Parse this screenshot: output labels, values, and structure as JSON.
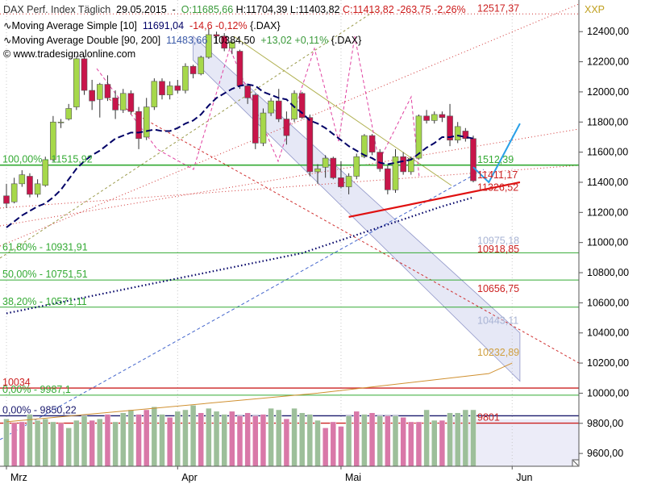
{
  "header": {
    "line1": {
      "name": "DAX Perf. Index Täglich",
      "date": "29.05.2015",
      "open": "O:11685,66",
      "high": "H:11704,39",
      "low": "L:11403,82",
      "close": "C:11413,82",
      "change": "-263,75",
      "change_pct": "-2,26%"
    },
    "line2": {
      "name": "Moving Average Simple [10]",
      "value": "11691,04",
      "change": "-14,6",
      "change_pct": "-0,12%",
      "symbol": "{.DAX}"
    },
    "line3": {
      "name": "Moving Average Double [90, 200]",
      "value1": "11483,66",
      "value2": "10384,50",
      "change": "+13,02",
      "change_pct": "+0,11%",
      "symbol": "{.DAX}"
    },
    "line4": {
      "copyright": "© www.tradesignalonline.com"
    }
  },
  "colors": {
    "up": "#a6d84a",
    "down": "#c8154a",
    "vol_up": "#9dbf9a",
    "vol_down": "#d978a8",
    "ma_simple": "#000066",
    "fib": "#33aa33",
    "resistance": "#cc2222",
    "trend_up": "#e01010",
    "forecast": "#2aa0e8",
    "channel_fill": "#e6e8f6"
  },
  "chart_data": {
    "type": "candlestick",
    "symbol": "XXP",
    "y_ticks": [
      "12400,00",
      "12200,00",
      "12000,00",
      "11800,00",
      "11600,00",
      "11400,00",
      "11200,00",
      "11000,00",
      "10800,00",
      "10600,00",
      "10400,00",
      "10200,00",
      "10000,00",
      "9800,00",
      "9600,00"
    ],
    "y_tick_values": [
      12400,
      12200,
      12000,
      11800,
      11600,
      11400,
      11200,
      11000,
      10800,
      10600,
      10400,
      10200,
      10000,
      9800,
      9600
    ],
    "ylim": [
      9515,
      12610
    ],
    "x_labels": [
      {
        "label": "Mrz",
        "index": 0
      },
      {
        "label": "Apr",
        "index": 22
      },
      {
        "label": "Mai",
        "index": 43
      },
      {
        "label": "Jun",
        "index": 65
      }
    ],
    "candles": [
      {
        "o": 11310,
        "h": 11390,
        "l": 11230,
        "c": 11260
      },
      {
        "o": 11270,
        "h": 11430,
        "l": 11260,
        "c": 11390
      },
      {
        "o": 11390,
        "h": 11480,
        "l": 11370,
        "c": 11450
      },
      {
        "o": 11440,
        "h": 11460,
        "l": 11300,
        "c": 11320
      },
      {
        "o": 11320,
        "h": 11420,
        "l": 11300,
        "c": 11390
      },
      {
        "o": 11380,
        "h": 11570,
        "l": 11370,
        "c": 11550
      },
      {
        "o": 11550,
        "h": 11840,
        "l": 11540,
        "c": 11800
      },
      {
        "o": 11800,
        "h": 11820,
        "l": 11760,
        "c": 11800
      },
      {
        "o": 11820,
        "h": 11920,
        "l": 11810,
        "c": 11890
      },
      {
        "o": 11900,
        "h": 12240,
        "l": 11880,
        "c": 12220
      },
      {
        "o": 12220,
        "h": 12240,
        "l": 11980,
        "c": 12010
      },
      {
        "o": 12010,
        "h": 12080,
        "l": 11880,
        "c": 11940
      },
      {
        "o": 11950,
        "h": 12060,
        "l": 11830,
        "c": 12050
      },
      {
        "o": 12050,
        "h": 12110,
        "l": 11940,
        "c": 11960
      },
      {
        "o": 11960,
        "h": 12010,
        "l": 11820,
        "c": 11880
      },
      {
        "o": 11880,
        "h": 12020,
        "l": 11860,
        "c": 11990
      },
      {
        "o": 11990,
        "h": 12010,
        "l": 11850,
        "c": 11870
      },
      {
        "o": 11870,
        "h": 11900,
        "l": 11620,
        "c": 11690
      },
      {
        "o": 11700,
        "h": 11960,
        "l": 11680,
        "c": 11900
      },
      {
        "o": 11900,
        "h": 12090,
        "l": 11880,
        "c": 12070
      },
      {
        "o": 12070,
        "h": 12090,
        "l": 11950,
        "c": 11980
      },
      {
        "o": 11980,
        "h": 12070,
        "l": 11950,
        "c": 12040
      },
      {
        "o": 12040,
        "h": 12080,
        "l": 11990,
        "c": 12010
      },
      {
        "o": 12010,
        "h": 12190,
        "l": 11990,
        "c": 12170
      },
      {
        "o": 12170,
        "h": 12180,
        "l": 12090,
        "c": 12120
      },
      {
        "o": 12120,
        "h": 12240,
        "l": 12110,
        "c": 12230
      },
      {
        "o": 12230,
        "h": 12420,
        "l": 12220,
        "c": 12380
      },
      {
        "o": 12380,
        "h": 12400,
        "l": 12320,
        "c": 12370
      },
      {
        "o": 12370,
        "h": 12390,
        "l": 12270,
        "c": 12290
      },
      {
        "o": 12290,
        "h": 12340,
        "l": 12250,
        "c": 12330
      },
      {
        "o": 12270,
        "h": 12280,
        "l": 12020,
        "c": 12040
      },
      {
        "o": 12040,
        "h": 12050,
        "l": 11920,
        "c": 11960
      },
      {
        "o": 11980,
        "h": 11990,
        "l": 11620,
        "c": 11660
      },
      {
        "o": 11660,
        "h": 11890,
        "l": 11640,
        "c": 11860
      },
      {
        "o": 11860,
        "h": 11960,
        "l": 11840,
        "c": 11940
      },
      {
        "o": 11940,
        "h": 12020,
        "l": 11800,
        "c": 11820
      },
      {
        "o": 11820,
        "h": 11870,
        "l": 11650,
        "c": 11710
      },
      {
        "o": 11820,
        "h": 12010,
        "l": 11800,
        "c": 11990
      },
      {
        "o": 11990,
        "h": 12000,
        "l": 11820,
        "c": 11830
      },
      {
        "o": 11830,
        "h": 11850,
        "l": 11440,
        "c": 11470
      },
      {
        "o": 11470,
        "h": 11520,
        "l": 11390,
        "c": 11490
      },
      {
        "o": 11500,
        "h": 11580,
        "l": 11430,
        "c": 11560
      },
      {
        "o": 11560,
        "h": 11570,
        "l": 11420,
        "c": 11430
      },
      {
        "o": 11430,
        "h": 11540,
        "l": 11360,
        "c": 11370
      },
      {
        "o": 11370,
        "h": 11460,
        "l": 11320,
        "c": 11440
      },
      {
        "o": 11440,
        "h": 11590,
        "l": 11420,
        "c": 11570
      },
      {
        "o": 11570,
        "h": 11720,
        "l": 11560,
        "c": 11710
      },
      {
        "o": 11710,
        "h": 11720,
        "l": 11580,
        "c": 11600
      },
      {
        "o": 11600,
        "h": 11620,
        "l": 11470,
        "c": 11490
      },
      {
        "o": 11490,
        "h": 11510,
        "l": 11320,
        "c": 11350
      },
      {
        "o": 11350,
        "h": 11620,
        "l": 11330,
        "c": 11570
      },
      {
        "o": 11570,
        "h": 11600,
        "l": 11450,
        "c": 11470
      },
      {
        "o": 11470,
        "h": 11570,
        "l": 11450,
        "c": 11560
      },
      {
        "o": 11560,
        "h": 11850,
        "l": 11550,
        "c": 11840
      },
      {
        "o": 11840,
        "h": 11880,
        "l": 11790,
        "c": 11810
      },
      {
        "o": 11810,
        "h": 11870,
        "l": 11790,
        "c": 11850
      },
      {
        "o": 11850,
        "h": 11870,
        "l": 11800,
        "c": 11830
      },
      {
        "o": 11840,
        "h": 11920,
        "l": 11640,
        "c": 11680
      },
      {
        "o": 11680,
        "h": 11800,
        "l": 11660,
        "c": 11770
      },
      {
        "o": 11740,
        "h": 11760,
        "l": 11670,
        "c": 11690
      },
      {
        "o": 11690,
        "h": 11710,
        "l": 11400,
        "c": 11410
      }
    ],
    "ma_simple_10": [
      11100,
      11140,
      11180,
      11210,
      11240,
      11260,
      11300,
      11350,
      11420,
      11490,
      11540,
      11580,
      11610,
      11650,
      11690,
      11710,
      11730,
      11730,
      11740,
      11750,
      11740,
      11740,
      11760,
      11790,
      11810,
      11850,
      11910,
      11960,
      11990,
      12020,
      12040,
      12050,
      12040,
      12000,
      11980,
      11960,
      11950,
      11900,
      11860,
      11810,
      11790,
      11760,
      11720,
      11680,
      11640,
      11610,
      11580,
      11560,
      11530,
      11520,
      11530,
      11540,
      11550,
      11590,
      11630,
      11660,
      11700,
      11700,
      11710,
      11700,
      11691
    ],
    "volume": [
      9830,
      9800,
      9810,
      9860,
      9820,
      9830,
      9810,
      9800,
      9770,
      9820,
      9850,
      9820,
      9830,
      9860,
      9810,
      9870,
      9890,
      9860,
      9890,
      9910,
      9860,
      9840,
      9880,
      9890,
      9920,
      9870,
      9900,
      9880,
      9860,
      9880,
      9850,
      9870,
      9850,
      9860,
      9900,
      9890,
      9830,
      9900,
      9870,
      9860,
      9820,
      9770,
      9810,
      9780,
      9850,
      9880,
      9860,
      9870,
      9850,
      9850,
      9850,
      9840,
      9810,
      9810,
      9890,
      9820,
      9820,
      9870,
      9870,
      9890,
      9890
    ],
    "volume_colors": [
      "up",
      "down",
      "down",
      "up",
      "up",
      "up",
      "up",
      "down",
      "up",
      "up",
      "up",
      "down",
      "up",
      "down",
      "up",
      "up",
      "up",
      "down",
      "down",
      "up",
      "up",
      "down",
      "up",
      "up",
      "up",
      "down",
      "up",
      "up",
      "up",
      "down",
      "down",
      "down",
      "down",
      "down",
      "up",
      "up",
      "down",
      "up",
      "up",
      "up",
      "up",
      "down",
      "down",
      "down",
      "up",
      "down",
      "up",
      "down",
      "up",
      "down",
      "up",
      "down",
      "down",
      "down",
      "up",
      "up",
      "down",
      "up",
      "up",
      "up",
      "up"
    ],
    "levels": [
      {
        "label": "12517,37",
        "value": 12517.37,
        "style": "dotted-red",
        "side": "right"
      },
      {
        "label": "100,00% - 11515,92",
        "value": 11515.92,
        "style": "fib",
        "side": "left"
      },
      {
        "label": "1512,39",
        "value": 11512.39,
        "style": "fib",
        "side": "right"
      },
      {
        "label": "11411,17",
        "value": 11411.17,
        "style": "text",
        "side": "right"
      },
      {
        "label": "11326,52",
        "value": 11326.52,
        "style": "text",
        "side": "right"
      },
      {
        "label": "10975,18",
        "value": 10975.18,
        "style": "text-light",
        "side": "right"
      },
      {
        "label": "61,80% - 10931,91",
        "value": 10931.91,
        "style": "fib",
        "side": "left"
      },
      {
        "label": "10918,85",
        "value": 10918.85,
        "style": "text",
        "side": "right"
      },
      {
        "label": "50,00% - 10751,51",
        "value": 10751.51,
        "style": "fib",
        "side": "left"
      },
      {
        "label": "10656,75",
        "value": 10656.75,
        "style": "text",
        "side": "right"
      },
      {
        "label": "38,20% - 10571,11",
        "value": 10571.11,
        "style": "fib",
        "side": "left"
      },
      {
        "label": "10443,11",
        "value": 10443.11,
        "style": "text-light",
        "side": "right"
      },
      {
        "label": "10232,89",
        "value": 10232.89,
        "style": "text-orange",
        "side": "right"
      },
      {
        "label": "10034",
        "value": 10034,
        "style": "red",
        "side": "left"
      },
      {
        "label": "0,00% - 9987,1",
        "value": 9987.1,
        "style": "fib",
        "side": "left"
      },
      {
        "label": "0,00% - 9850,22",
        "value": 9850.22,
        "style": "navy",
        "side": "left"
      },
      {
        "label": "9801",
        "value": 9801,
        "style": "red",
        "side": "right"
      }
    ],
    "ma_double_90": [
      [
        0,
        10530
      ],
      [
        38,
        10930
      ],
      [
        56,
        11240
      ],
      [
        60,
        11300
      ]
    ],
    "ma_double_200": [
      [
        0,
        9810
      ],
      [
        40,
        10000
      ],
      [
        62,
        10130
      ],
      [
        65,
        10200
      ]
    ],
    "forecast": [
      [
        60,
        11500
      ],
      [
        62,
        11400
      ],
      [
        66,
        11790
      ]
    ],
    "trend_support": [
      [
        44,
        11170
      ],
      [
        66,
        11400
      ]
    ],
    "regression_channel": {
      "upper": [
        [
          24,
          12370
        ],
        [
          66,
          10400
        ]
      ],
      "lower": [
        [
          24,
          12210
        ],
        [
          66,
          10080
        ]
      ]
    }
  }
}
